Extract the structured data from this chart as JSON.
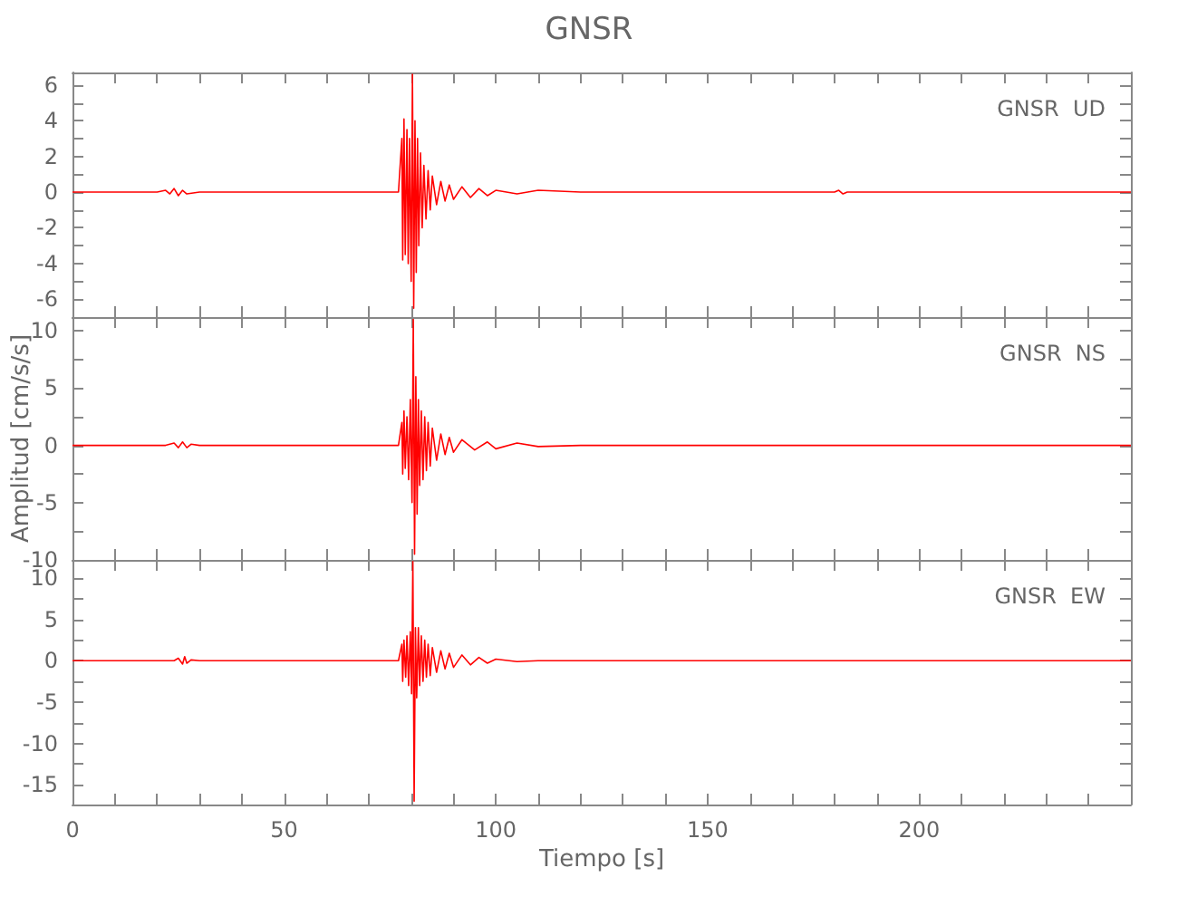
{
  "chart_data": [
    {
      "type": "line",
      "title": "GNSR",
      "annotations": [
        "GNSR  UD"
      ],
      "tick_labels": "y",
      "grid": false,
      "marker": "none",
      "line_style": "solid",
      "xlim": [
        0,
        250
      ],
      "xticks": [
        {
          "value": 0,
          "label": null
        },
        {
          "value": 10,
          "label": null
        },
        {
          "value": 20,
          "label": null
        },
        {
          "value": 30,
          "label": null
        },
        {
          "value": 40,
          "label": null
        },
        {
          "value": 50,
          "label": null
        },
        {
          "value": 60,
          "label": null
        },
        {
          "value": 70,
          "label": null
        },
        {
          "value": 80,
          "label": null
        },
        {
          "value": 90,
          "label": null
        },
        {
          "value": 100,
          "label": null
        },
        {
          "value": 110,
          "label": null
        },
        {
          "value": 120,
          "label": null
        },
        {
          "value": 130,
          "label": null
        },
        {
          "value": 140,
          "label": null
        },
        {
          "value": 150,
          "label": null
        },
        {
          "value": 160,
          "label": null
        },
        {
          "value": 170,
          "label": null
        },
        {
          "value": 180,
          "label": null
        },
        {
          "value": 190,
          "label": null
        },
        {
          "value": 200,
          "label": null
        },
        {
          "value": 210,
          "label": null
        },
        {
          "value": 220,
          "label": null
        },
        {
          "value": 230,
          "label": null
        },
        {
          "value": 240,
          "label": null
        }
      ],
      "ylim": [
        -7.0,
        6.7
      ],
      "yticks": [
        -6,
        {
          "value": -5,
          "label": null
        },
        -4,
        {
          "value": -3,
          "label": null
        },
        -2,
        {
          "value": -1,
          "label": null
        },
        0,
        {
          "value": 1,
          "label": null
        },
        2,
        {
          "value": 3,
          "label": null
        },
        4,
        {
          "value": 5,
          "label": null
        },
        6
      ],
      "series": [
        {
          "color": "#ff0000",
          "x": [
            0,
            20,
            22,
            23,
            24,
            25,
            26,
            27,
            30,
            77,
            77.8,
            78,
            78.3,
            78.6,
            79,
            79.3,
            79.6,
            80,
            80.3,
            80.6,
            80.9,
            81.2,
            81.5,
            81.8,
            82.2,
            82.6,
            83,
            83.5,
            84,
            84.5,
            85,
            86,
            87,
            88,
            89,
            90,
            92,
            94,
            96,
            98,
            100,
            105,
            110,
            120,
            180,
            181,
            182,
            183,
            250
          ],
          "values": [
            0,
            0,
            0.1,
            -0.1,
            0.2,
            -0.2,
            0.1,
            -0.1,
            0,
            0,
            3,
            -3.8,
            4.1,
            -3.5,
            3.5,
            -4,
            3,
            -5,
            6.6,
            -6.5,
            4,
            -4.5,
            3,
            -3,
            2.2,
            -2,
            1.5,
            -1.5,
            1.2,
            -1,
            0.9,
            -0.7,
            0.6,
            -0.5,
            0.4,
            -0.4,
            0.3,
            -0.3,
            0.2,
            -0.2,
            0.1,
            -0.1,
            0.1,
            0,
            0,
            0.1,
            -0.1,
            0,
            0
          ]
        }
      ]
    },
    {
      "type": "line",
      "ylabel": "Amplitud [cm/s/s]",
      "annotations": [
        "GNSR  NS"
      ],
      "tick_labels": "y",
      "grid": false,
      "marker": "none",
      "line_style": "solid",
      "xlim": [
        0,
        250
      ],
      "xticks": [
        {
          "value": 0,
          "label": null
        },
        {
          "value": 10,
          "label": null
        },
        {
          "value": 20,
          "label": null
        },
        {
          "value": 30,
          "label": null
        },
        {
          "value": 40,
          "label": null
        },
        {
          "value": 50,
          "label": null
        },
        {
          "value": 60,
          "label": null
        },
        {
          "value": 70,
          "label": null
        },
        {
          "value": 80,
          "label": null
        },
        {
          "value": 90,
          "label": null
        },
        {
          "value": 100,
          "label": null
        },
        {
          "value": 110,
          "label": null
        },
        {
          "value": 120,
          "label": null
        },
        {
          "value": 130,
          "label": null
        },
        {
          "value": 140,
          "label": null
        },
        {
          "value": 150,
          "label": null
        },
        {
          "value": 160,
          "label": null
        },
        {
          "value": 170,
          "label": null
        },
        {
          "value": 180,
          "label": null
        },
        {
          "value": 190,
          "label": null
        },
        {
          "value": 200,
          "label": null
        },
        {
          "value": 210,
          "label": null
        },
        {
          "value": 220,
          "label": null
        },
        {
          "value": 230,
          "label": null
        },
        {
          "value": 240,
          "label": null
        }
      ],
      "ylim": [
        -10,
        11.2
      ],
      "yticks": [
        -10,
        {
          "value": -7.5,
          "label": null
        },
        -5,
        {
          "value": -2.5,
          "label": null
        },
        0,
        {
          "value": 2.5,
          "label": null
        },
        5,
        {
          "value": 7.5,
          "label": null
        },
        10
      ],
      "series": [
        {
          "color": "#ff0000",
          "x": [
            0,
            22,
            24,
            25,
            26,
            27,
            28,
            30,
            77,
            77.8,
            78,
            78.3,
            78.6,
            79,
            79.4,
            79.8,
            80.2,
            80.5,
            80.8,
            81.1,
            81.4,
            81.7,
            82,
            82.4,
            82.8,
            83.2,
            83.6,
            84,
            84.5,
            85,
            86,
            87,
            88,
            89,
            90,
            92,
            95,
            98,
            100,
            105,
            110,
            120,
            250
          ],
          "values": [
            0,
            0,
            0.2,
            -0.2,
            0.3,
            -0.2,
            0.1,
            0,
            0,
            2,
            -2.5,
            3,
            -2,
            2.5,
            -3,
            4,
            -5,
            11,
            -9.5,
            6,
            -6,
            4,
            -3.5,
            3,
            -3,
            2.5,
            -2.2,
            2,
            -1.8,
            1.5,
            -1.3,
            1,
            -0.8,
            0.7,
            -0.6,
            0.5,
            -0.4,
            0.3,
            -0.3,
            0.2,
            -0.1,
            0,
            0
          ]
        }
      ]
    },
    {
      "type": "line",
      "xlabel": "Tiempo [s]",
      "annotations": [
        "GNSR  EW"
      ],
      "grid": false,
      "marker": "none",
      "line_style": "solid",
      "xlim": [
        0,
        250
      ],
      "xticks": [
        0,
        {
          "value": 10,
          "label": null
        },
        {
          "value": 20,
          "label": null
        },
        {
          "value": 30,
          "label": null
        },
        {
          "value": 40,
          "label": null
        },
        50,
        {
          "value": 60,
          "label": null
        },
        {
          "value": 70,
          "label": null
        },
        {
          "value": 80,
          "label": null
        },
        {
          "value": 90,
          "label": null
        },
        100,
        {
          "value": 110,
          "label": null
        },
        {
          "value": 120,
          "label": null
        },
        {
          "value": 130,
          "label": null
        },
        {
          "value": 140,
          "label": null
        },
        150,
        {
          "value": 160,
          "label": null
        },
        {
          "value": 170,
          "label": null
        },
        {
          "value": 180,
          "label": null
        },
        {
          "value": 190,
          "label": null
        },
        200,
        {
          "value": 210,
          "label": null
        },
        {
          "value": 220,
          "label": null
        },
        {
          "value": 230,
          "label": null
        },
        {
          "value": 240,
          "label": null
        }
      ],
      "ylim": [
        -17.4,
        12.2
      ],
      "yticks": [
        -15,
        {
          "value": -12.5,
          "label": null
        },
        -10,
        {
          "value": -7.5,
          "label": null
        },
        -5,
        {
          "value": -2.5,
          "label": null
        },
        0,
        {
          "value": 2.5,
          "label": null
        },
        5,
        {
          "value": 7.5,
          "label": null
        },
        10
      ],
      "series": [
        {
          "color": "#ff0000",
          "x": [
            0,
            24,
            25,
            26,
            26.5,
            27,
            28,
            30,
            77,
            77.8,
            78,
            78.3,
            78.7,
            79,
            79.4,
            79.8,
            80.1,
            80.4,
            80.7,
            81,
            81.3,
            81.7,
            82,
            82.4,
            82.8,
            83.2,
            83.6,
            84,
            84.5,
            85,
            86,
            87,
            88,
            89,
            90,
            92,
            94,
            96,
            98,
            100,
            105,
            110,
            250
          ],
          "values": [
            0,
            0,
            0.3,
            -0.4,
            0.5,
            -0.3,
            0.1,
            0,
            0,
            2,
            -2.5,
            2.5,
            -2,
            3,
            -3,
            3.5,
            -4,
            12,
            -17,
            4,
            -4.5,
            4,
            -3,
            3,
            -2.5,
            2.5,
            -2,
            2,
            -1.8,
            1.6,
            -1.4,
            1.2,
            -1,
            0.9,
            -0.8,
            0.7,
            -0.5,
            0.4,
            -0.3,
            0.2,
            -0.1,
            0,
            0
          ]
        }
      ]
    }
  ]
}
